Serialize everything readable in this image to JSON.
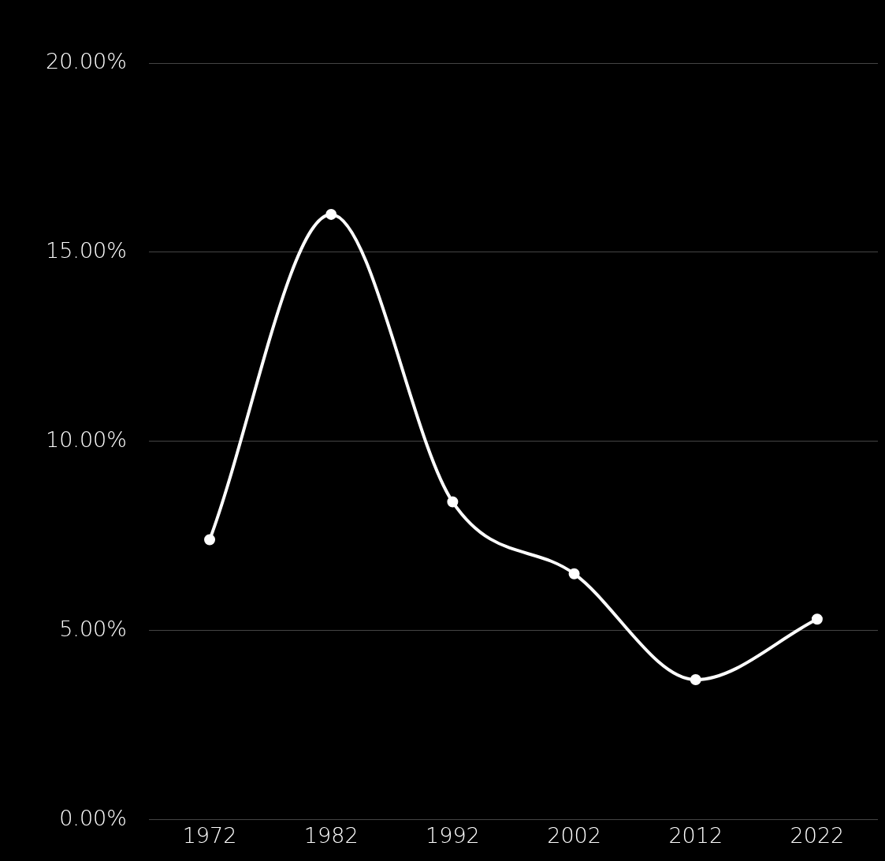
{
  "chart_data": {
    "type": "line",
    "categories": [
      "1972",
      "1982",
      "1992",
      "2002",
      "2012",
      "2022"
    ],
    "series": [
      {
        "color": "#ffffff",
        "values": [
          7.4,
          16.0,
          8.4,
          6.5,
          3.7,
          5.3
        ]
      }
    ],
    "ylim": [
      0,
      20
    ],
    "yticks": [
      {
        "value": 0,
        "label": "0.00%"
      },
      {
        "value": 5,
        "label": "5.00%"
      },
      {
        "value": 10,
        "label": "10.00%"
      },
      {
        "value": 15,
        "label": "15.00%"
      },
      {
        "value": 20,
        "label": "20.00%"
      }
    ],
    "grid": "y",
    "legend": false,
    "marker": "circle",
    "line_style": "solid"
  }
}
